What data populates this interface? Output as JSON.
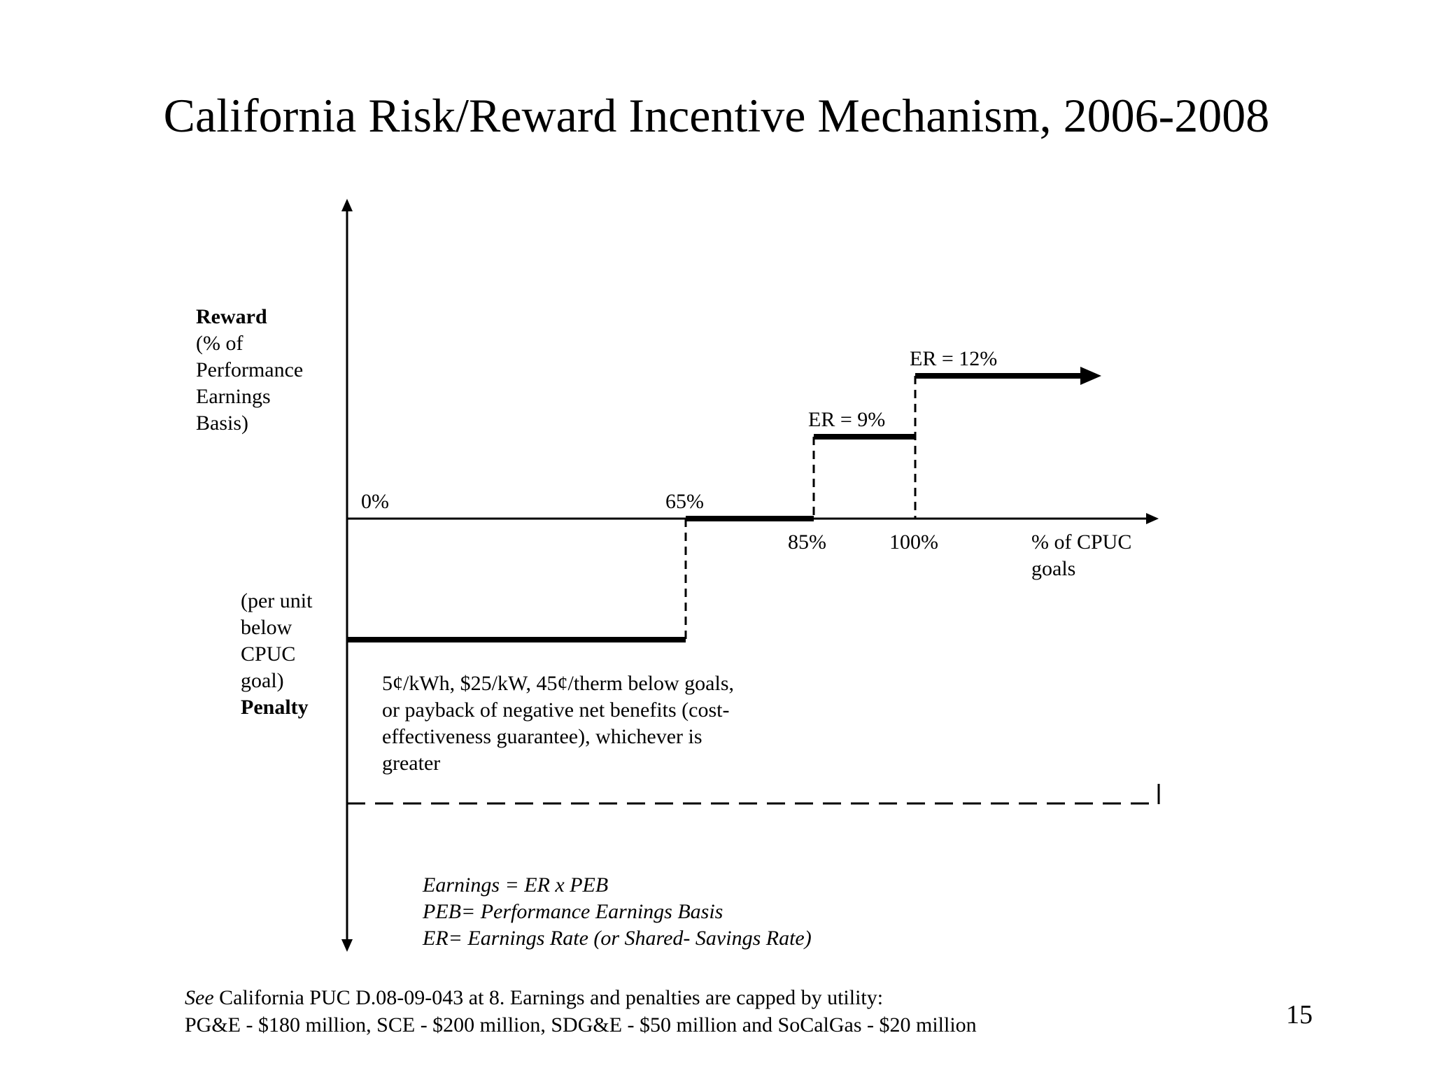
{
  "title": "California Risk/Reward Incentive Mechanism, 2006-2008",
  "reward_label": {
    "heading": "Reward",
    "lines": [
      "(% of",
      "Performance",
      "Earnings",
      "Basis)"
    ]
  },
  "penalty_label": {
    "lines": [
      "(per unit",
      "below",
      "CPUC",
      "goal)"
    ],
    "heading": "Penalty"
  },
  "x_axis": {
    "label_lines": [
      "% of CPUC",
      "goals"
    ],
    "tick_labels": {
      "zero": "0%",
      "sixty_five": "65%",
      "eighty_five": "85%",
      "hundred": "100%"
    }
  },
  "earnings_rate_labels": {
    "tier_85_100": "ER = 9%",
    "tier_above_100": "ER = 12%"
  },
  "penalty_description": [
    "5¢/kWh, $25/kW, 45¢/therm below goals,",
    "or payback of negative net benefits (cost-",
    "effectiveness guarantee), whichever is",
    "greater"
  ],
  "legend": [
    "Earnings = ER x PEB",
    "PEB= Performance Earnings Basis",
    "ER= Earnings Rate (or Shared- Savings Rate)"
  ],
  "footnote": {
    "see_word": "See",
    "line1_rest": " California PUC D.08-09-043 at 8. Earnings and penalties are capped by utility:",
    "line2": "PG&E - $180 million, SCE - $200 million, SDG&E - $50 million and SoCalGas - $20 million"
  },
  "page_number": "15"
}
